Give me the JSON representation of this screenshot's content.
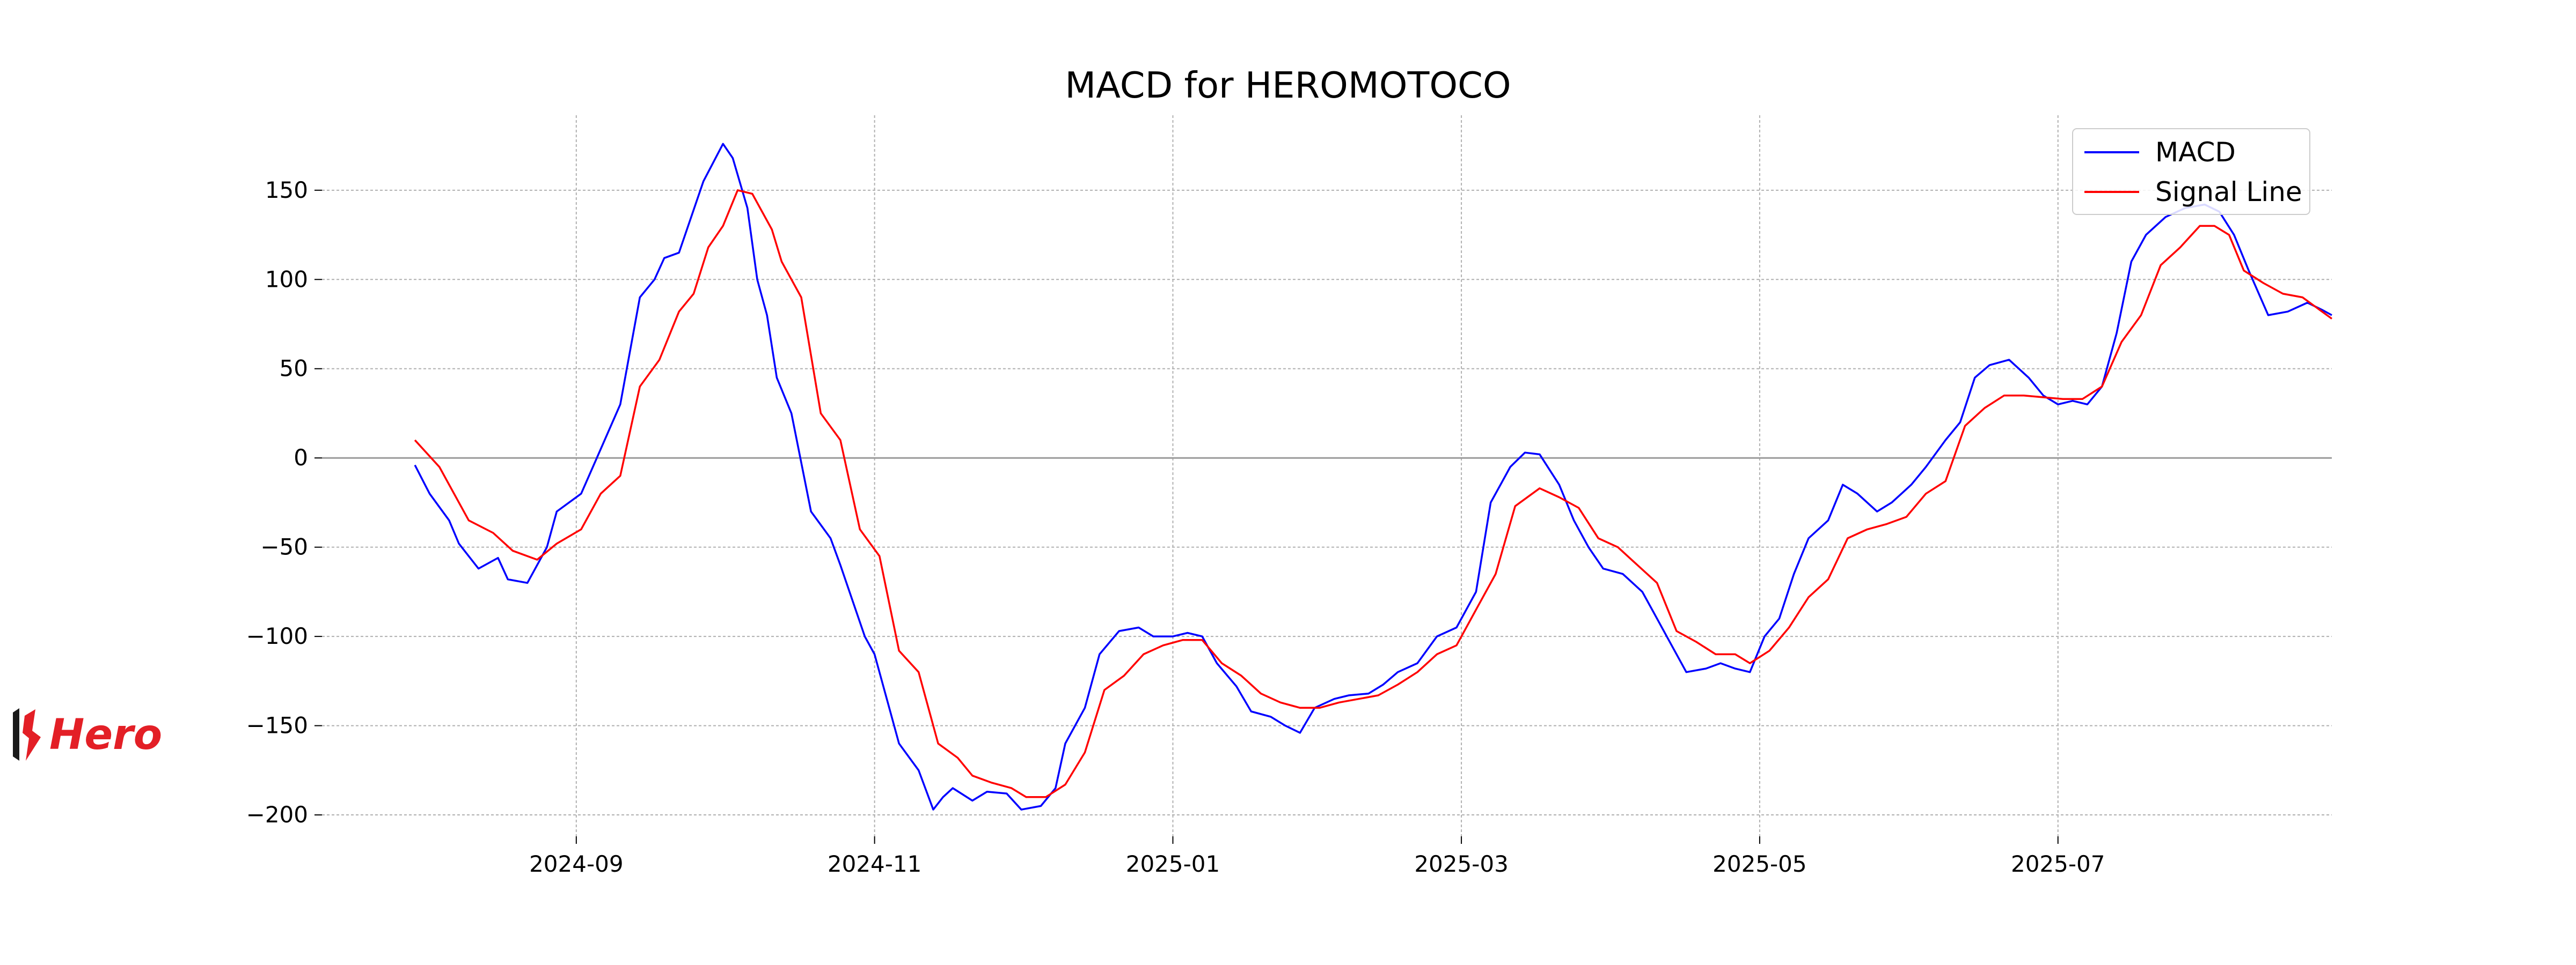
{
  "logo": {
    "brand": "Hero",
    "color": "#e31f26",
    "mark_color": "#1a1a1a"
  },
  "chart_data": {
    "type": "line",
    "title": "MACD for HEROMOTOCO",
    "xlabel": "",
    "ylabel": "",
    "grid": true,
    "legend_position": "top-right",
    "x_tick_labels": [
      "2024-09",
      "2024-11",
      "2025-01",
      "2025-03",
      "2025-05",
      "2025-07"
    ],
    "y_ticks": [
      -200,
      -150,
      -100,
      -50,
      0,
      50,
      100,
      150
    ],
    "y_tick_labels": [
      "−200",
      "−150",
      "−100",
      "−50",
      "0",
      "50",
      "100",
      "150"
    ],
    "xlim": [
      "2024-07-11",
      "2025-08-26"
    ],
    "ylim": [
      -212,
      192
    ],
    "zero_line": true,
    "series": [
      {
        "name": "MACD",
        "color": "#0000ff",
        "points": [
          [
            "2024-07-30",
            -4
          ],
          [
            "2024-08-02",
            -20
          ],
          [
            "2024-08-06",
            -35
          ],
          [
            "2024-08-08",
            -48
          ],
          [
            "2024-08-12",
            -62
          ],
          [
            "2024-08-16",
            -56
          ],
          [
            "2024-08-18",
            -68
          ],
          [
            "2024-08-22",
            -70
          ],
          [
            "2024-08-26",
            -50
          ],
          [
            "2024-08-28",
            -30
          ],
          [
            "2024-09-02",
            -20
          ],
          [
            "2024-09-06",
            5
          ],
          [
            "2024-09-10",
            30
          ],
          [
            "2024-09-14",
            90
          ],
          [
            "2024-09-17",
            100
          ],
          [
            "2024-09-19",
            112
          ],
          [
            "2024-09-22",
            115
          ],
          [
            "2024-09-27",
            155
          ],
          [
            "2024-10-01",
            176
          ],
          [
            "2024-10-03",
            168
          ],
          [
            "2024-10-06",
            140
          ],
          [
            "2024-10-08",
            100
          ],
          [
            "2024-10-10",
            80
          ],
          [
            "2024-10-12",
            45
          ],
          [
            "2024-10-15",
            25
          ],
          [
            "2024-10-19",
            -30
          ],
          [
            "2024-10-23",
            -45
          ],
          [
            "2024-10-25",
            -60
          ],
          [
            "2024-10-30",
            -100
          ],
          [
            "2024-11-01",
            -110
          ],
          [
            "2024-11-06",
            -160
          ],
          [
            "2024-11-10",
            -175
          ],
          [
            "2024-11-13",
            -197
          ],
          [
            "2024-11-15",
            -190
          ],
          [
            "2024-11-17",
            -185
          ],
          [
            "2024-11-21",
            -192
          ],
          [
            "2024-11-24",
            -187
          ],
          [
            "2024-11-28",
            -188
          ],
          [
            "2024-12-01",
            -197
          ],
          [
            "2024-12-05",
            -195
          ],
          [
            "2024-12-08",
            -185
          ],
          [
            "2024-12-10",
            -160
          ],
          [
            "2024-12-14",
            -140
          ],
          [
            "2024-12-17",
            -110
          ],
          [
            "2024-12-21",
            -97
          ],
          [
            "2024-12-25",
            -95
          ],
          [
            "2024-12-28",
            -100
          ],
          [
            "2025-01-01",
            -100
          ],
          [
            "2025-01-04",
            -98
          ],
          [
            "2025-01-07",
            -100
          ],
          [
            "2025-01-10",
            -115
          ],
          [
            "2025-01-14",
            -128
          ],
          [
            "2025-01-17",
            -142
          ],
          [
            "2025-01-21",
            -145
          ],
          [
            "2025-01-24",
            -150
          ],
          [
            "2025-01-27",
            -154
          ],
          [
            "2025-01-30",
            -140
          ],
          [
            "2025-02-03",
            -135
          ],
          [
            "2025-02-06",
            -133
          ],
          [
            "2025-02-10",
            -132
          ],
          [
            "2025-02-13",
            -127
          ],
          [
            "2025-02-16",
            -120
          ],
          [
            "2025-02-20",
            -115
          ],
          [
            "2025-02-24",
            -100
          ],
          [
            "2025-02-28",
            -95
          ],
          [
            "2025-03-04",
            -75
          ],
          [
            "2025-03-07",
            -25
          ],
          [
            "2025-03-11",
            -5
          ],
          [
            "2025-03-14",
            3
          ],
          [
            "2025-03-17",
            2
          ],
          [
            "2025-03-21",
            -15
          ],
          [
            "2025-03-24",
            -35
          ],
          [
            "2025-03-27",
            -50
          ],
          [
            "2025-03-30",
            -62
          ],
          [
            "2025-04-03",
            -65
          ],
          [
            "2025-04-07",
            -75
          ],
          [
            "2025-04-10",
            -90
          ],
          [
            "2025-04-13",
            -105
          ],
          [
            "2025-04-16",
            -120
          ],
          [
            "2025-04-20",
            -118
          ],
          [
            "2025-04-23",
            -115
          ],
          [
            "2025-04-26",
            -118
          ],
          [
            "2025-04-29",
            -120
          ],
          [
            "2025-05-02",
            -100
          ],
          [
            "2025-05-05",
            -90
          ],
          [
            "2025-05-08",
            -65
          ],
          [
            "2025-05-11",
            -45
          ],
          [
            "2025-05-15",
            -35
          ],
          [
            "2025-05-18",
            -15
          ],
          [
            "2025-05-21",
            -20
          ],
          [
            "2025-05-25",
            -30
          ],
          [
            "2025-05-28",
            -25
          ],
          [
            "2025-06-01",
            -15
          ],
          [
            "2025-06-04",
            -5
          ],
          [
            "2025-06-08",
            10
          ],
          [
            "2025-06-11",
            20
          ],
          [
            "2025-06-14",
            45
          ],
          [
            "2025-06-17",
            52
          ],
          [
            "2025-06-21",
            55
          ],
          [
            "2025-06-25",
            45
          ],
          [
            "2025-06-28",
            35
          ],
          [
            "2025-07-01",
            30
          ],
          [
            "2025-07-04",
            32
          ],
          [
            "2025-07-07",
            30
          ],
          [
            "2025-07-10",
            40
          ],
          [
            "2025-07-13",
            70
          ],
          [
            "2025-07-16",
            110
          ],
          [
            "2025-07-19",
            125
          ],
          [
            "2025-07-23",
            135
          ],
          [
            "2025-07-27",
            140
          ],
          [
            "2025-07-31",
            142
          ],
          [
            "2025-08-03",
            138
          ],
          [
            "2025-08-06",
            125
          ],
          [
            "2025-08-09",
            105
          ],
          [
            "2025-08-13",
            80
          ],
          [
            "2025-08-17",
            82
          ],
          [
            "2025-08-21",
            87
          ],
          [
            "2025-08-24",
            83
          ],
          [
            "2025-08-26",
            80
          ]
        ]
      },
      {
        "name": "Signal Line",
        "color": "#ff0000",
        "points": [
          [
            "2024-07-30",
            10
          ],
          [
            "2024-08-04",
            -5
          ],
          [
            "2024-08-10",
            -35
          ],
          [
            "2024-08-15",
            -42
          ],
          [
            "2024-08-19",
            -52
          ],
          [
            "2024-08-24",
            -57
          ],
          [
            "2024-08-28",
            -48
          ],
          [
            "2024-09-02",
            -40
          ],
          [
            "2024-09-06",
            -20
          ],
          [
            "2024-09-10",
            -10
          ],
          [
            "2024-09-14",
            40
          ],
          [
            "2024-09-18",
            55
          ],
          [
            "2024-09-22",
            82
          ],
          [
            "2024-09-25",
            92
          ],
          [
            "2024-09-28",
            118
          ],
          [
            "2024-10-01",
            130
          ],
          [
            "2024-10-04",
            150
          ],
          [
            "2024-10-07",
            148
          ],
          [
            "2024-10-11",
            128
          ],
          [
            "2024-10-13",
            110
          ],
          [
            "2024-10-17",
            90
          ],
          [
            "2024-10-21",
            25
          ],
          [
            "2024-10-25",
            10
          ],
          [
            "2024-10-29",
            -40
          ],
          [
            "2024-11-02",
            -55
          ],
          [
            "2024-11-06",
            -108
          ],
          [
            "2024-11-10",
            -120
          ],
          [
            "2024-11-14",
            -160
          ],
          [
            "2024-11-18",
            -168
          ],
          [
            "2024-11-21",
            -178
          ],
          [
            "2024-11-25",
            -182
          ],
          [
            "2024-11-29",
            -185
          ],
          [
            "2024-12-02",
            -190
          ],
          [
            "2024-12-06",
            -190
          ],
          [
            "2024-12-10",
            -183
          ],
          [
            "2024-12-14",
            -165
          ],
          [
            "2024-12-18",
            -130
          ],
          [
            "2024-12-22",
            -122
          ],
          [
            "2024-12-26",
            -110
          ],
          [
            "2024-12-30",
            -105
          ],
          [
            "2025-01-03",
            -102
          ],
          [
            "2025-01-07",
            -102
          ],
          [
            "2025-01-11",
            -115
          ],
          [
            "2025-01-15",
            -122
          ],
          [
            "2025-01-19",
            -132
          ],
          [
            "2025-01-23",
            -137
          ],
          [
            "2025-01-27",
            -140
          ],
          [
            "2025-01-31",
            -140
          ],
          [
            "2025-02-04",
            -137
          ],
          [
            "2025-02-08",
            -135
          ],
          [
            "2025-02-12",
            -133
          ],
          [
            "2025-02-16",
            -127
          ],
          [
            "2025-02-20",
            -120
          ],
          [
            "2025-02-24",
            -110
          ],
          [
            "2025-02-28",
            -105
          ],
          [
            "2025-03-04",
            -85
          ],
          [
            "2025-03-08",
            -65
          ],
          [
            "2025-03-12",
            -27
          ],
          [
            "2025-03-17",
            -17
          ],
          [
            "2025-03-21",
            -22
          ],
          [
            "2025-03-25",
            -28
          ],
          [
            "2025-03-29",
            -45
          ],
          [
            "2025-04-02",
            -50
          ],
          [
            "2025-04-06",
            -60
          ],
          [
            "2025-04-10",
            -70
          ],
          [
            "2025-04-14",
            -97
          ],
          [
            "2025-04-18",
            -103
          ],
          [
            "2025-04-22",
            -110
          ],
          [
            "2025-04-26",
            -110
          ],
          [
            "2025-04-29",
            -115
          ],
          [
            "2025-05-03",
            -108
          ],
          [
            "2025-05-07",
            -95
          ],
          [
            "2025-05-11",
            -78
          ],
          [
            "2025-05-15",
            -68
          ],
          [
            "2025-05-19",
            -45
          ],
          [
            "2025-05-23",
            -40
          ],
          [
            "2025-05-27",
            -37
          ],
          [
            "2025-05-31",
            -33
          ],
          [
            "2025-06-04",
            -20
          ],
          [
            "2025-06-08",
            -13
          ],
          [
            "2025-06-12",
            18
          ],
          [
            "2025-06-16",
            28
          ],
          [
            "2025-06-20",
            35
          ],
          [
            "2025-06-24",
            35
          ],
          [
            "2025-06-28",
            34
          ],
          [
            "2025-07-02",
            33
          ],
          [
            "2025-07-06",
            33
          ],
          [
            "2025-07-10",
            40
          ],
          [
            "2025-07-14",
            65
          ],
          [
            "2025-07-18",
            80
          ],
          [
            "2025-07-22",
            108
          ],
          [
            "2025-07-26",
            118
          ],
          [
            "2025-07-30",
            130
          ],
          [
            "2025-08-02",
            130
          ],
          [
            "2025-08-05",
            125
          ],
          [
            "2025-08-08",
            105
          ],
          [
            "2025-08-12",
            98
          ],
          [
            "2025-08-16",
            92
          ],
          [
            "2025-08-20",
            90
          ],
          [
            "2025-08-24",
            82
          ],
          [
            "2025-08-26",
            78
          ]
        ]
      }
    ]
  }
}
